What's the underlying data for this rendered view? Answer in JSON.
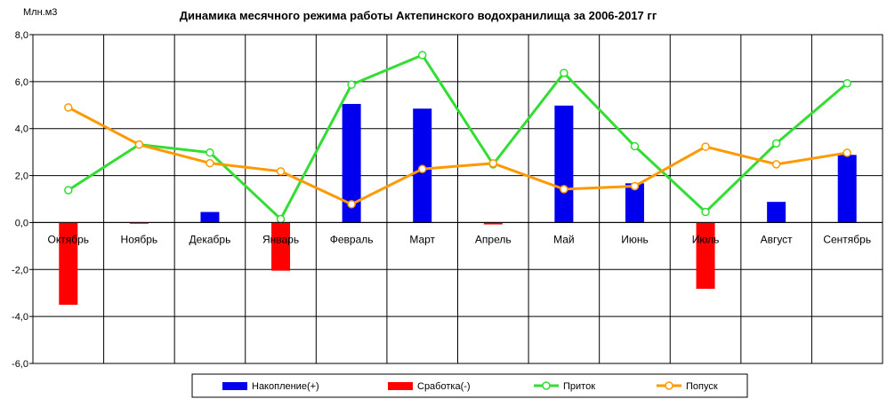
{
  "chart_data": {
    "type": "bar",
    "title": "Динамика месячного режима работы Актепинского водохранилища за 2006-2017 гг",
    "ylabel": "Млн.м3",
    "xlabel": "",
    "ylim": [
      -6,
      8
    ],
    "ytick_labels": [
      "-6,0",
      "-4,0",
      "-2,0",
      "0,0",
      "2,0",
      "4,0",
      "6,0",
      "8,0"
    ],
    "grid": true,
    "legend_position": "bottom",
    "categories": [
      "Октябрь",
      "Ноябрь",
      "Декабрь",
      "Январь",
      "Февраль",
      "Март",
      "Апрель",
      "Май",
      "Июнь",
      "Июль",
      "Август",
      "Сентябрь"
    ],
    "series": [
      {
        "name": "Накопление(+)",
        "kind": "bar",
        "color": "#0000ee",
        "values": [
          0,
          0,
          0.45,
          0,
          5.05,
          4.85,
          0,
          4.98,
          1.67,
          0,
          0.88,
          2.88
        ]
      },
      {
        "name": "Сработка(-)",
        "kind": "bar",
        "color": "#ff0000",
        "values": [
          -3.5,
          -0.05,
          0,
          -2.05,
          0,
          0,
          -0.08,
          0,
          0,
          -2.82,
          0,
          0
        ]
      },
      {
        "name": "Приток",
        "kind": "line",
        "color": "#33dd33",
        "values": [
          1.38,
          3.32,
          2.98,
          0.15,
          5.87,
          7.13,
          2.48,
          6.37,
          3.25,
          0.45,
          3.37,
          5.93
        ]
      },
      {
        "name": "Попуск",
        "kind": "line",
        "color": "#ff9900",
        "values": [
          4.9,
          3.32,
          2.53,
          2.18,
          0.78,
          2.28,
          2.52,
          1.42,
          1.55,
          3.23,
          2.48,
          2.97
        ]
      }
    ]
  }
}
